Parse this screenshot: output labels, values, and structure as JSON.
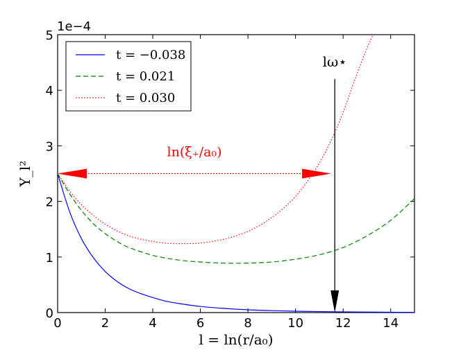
{
  "chart_data": {
    "type": "line",
    "xlabel": "l = ln(r/a₀)",
    "ylabel": "Y_l²",
    "scale_label": "1e−4",
    "xlim": [
      0,
      15
    ],
    "ylim": [
      0,
      5
    ],
    "x_ticks": [
      0,
      2,
      4,
      6,
      8,
      10,
      12,
      14
    ],
    "y_ticks": [
      0,
      1,
      2,
      3,
      4,
      5
    ],
    "x_tick_labels": [
      "0",
      "2",
      "4",
      "6",
      "8",
      "10",
      "12",
      "14"
    ],
    "y_tick_labels": [
      "0",
      "1",
      "2",
      "3",
      "4",
      "5"
    ],
    "grid": false,
    "legend_position": "top-left",
    "series": [
      {
        "name": "t = −0.038",
        "color": "#0000ff",
        "style": "solid",
        "x": [
          0,
          0.5,
          1,
          1.5,
          2,
          2.5,
          3,
          3.5,
          4,
          4.5,
          5,
          6,
          7,
          8,
          9,
          10,
          11,
          12,
          13,
          14,
          15
        ],
        "y": [
          2.5,
          1.82,
          1.33,
          0.99,
          0.74,
          0.56,
          0.43,
          0.34,
          0.27,
          0.21,
          0.17,
          0.11,
          0.075,
          0.05,
          0.035,
          0.025,
          0.018,
          0.013,
          0.009,
          0.006,
          0.004
        ]
      },
      {
        "name": "t = 0.021",
        "color": "#008000",
        "style": "dashed",
        "x": [
          0,
          0.5,
          1,
          1.5,
          2,
          2.5,
          3,
          4,
          5,
          6,
          7,
          8,
          9,
          10,
          11,
          12,
          13,
          14,
          15
        ],
        "y": [
          2.5,
          2.14,
          1.84,
          1.6,
          1.42,
          1.28,
          1.17,
          1.03,
          0.95,
          0.91,
          0.89,
          0.89,
          0.91,
          0.96,
          1.04,
          1.17,
          1.38,
          1.66,
          2.05
        ]
      },
      {
        "name": "t = 0.030",
        "color": "#ff0000",
        "style": "dotted",
        "x": [
          0,
          0.5,
          1,
          1.5,
          2,
          2.5,
          3,
          3.5,
          4,
          4.5,
          5,
          5.5,
          6,
          6.5,
          7,
          7.5,
          8,
          8.5,
          9,
          9.5,
          10,
          10.5,
          11,
          11.5,
          12,
          12.5,
          13,
          13.26
        ],
        "y": [
          2.5,
          2.19,
          1.94,
          1.75,
          1.59,
          1.47,
          1.38,
          1.32,
          1.28,
          1.25,
          1.24,
          1.24,
          1.25,
          1.28,
          1.32,
          1.38,
          1.46,
          1.57,
          1.71,
          1.88,
          2.09,
          2.36,
          2.69,
          3.1,
          3.6,
          4.2,
          4.75,
          5.0
        ]
      }
    ],
    "annotations": [
      {
        "id": "xi_arrow",
        "text": "ln(ξ₊/a₀)",
        "type": "double-arrow",
        "color": "#ff0000",
        "from": [
          0,
          2.5
        ],
        "to": [
          11.5,
          2.5
        ]
      },
      {
        "id": "lw_arrow",
        "text": "lω⋆",
        "type": "arrow",
        "color": "#000000",
        "from": [
          11.65,
          4.2
        ],
        "to": [
          11.65,
          0
        ]
      }
    ]
  }
}
